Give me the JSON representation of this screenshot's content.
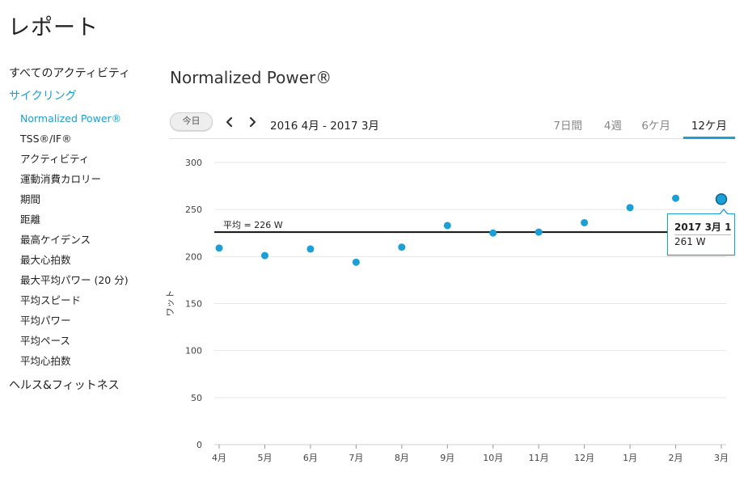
{
  "page_title": "レポート",
  "sidebar": {
    "top_items": [
      {
        "label": "すべてのアクティビティ",
        "active": false
      },
      {
        "label": "サイクリング",
        "active": true
      }
    ],
    "sub_items": [
      {
        "label": "Normalized Power®",
        "active": true
      },
      {
        "label": "TSS®/IF®",
        "active": false
      },
      {
        "label": "アクティビティ",
        "active": false
      },
      {
        "label": "運動消費カロリー",
        "active": false
      },
      {
        "label": "期間",
        "active": false
      },
      {
        "label": "距離",
        "active": false
      },
      {
        "label": "最高ケイデンス",
        "active": false
      },
      {
        "label": "最大心拍数",
        "active": false
      },
      {
        "label": "最大平均パワー (20 分)",
        "active": false
      },
      {
        "label": "平均スピード",
        "active": false
      },
      {
        "label": "平均パワー",
        "active": false
      },
      {
        "label": "平均ペース",
        "active": false
      },
      {
        "label": "平均心拍数",
        "active": false
      }
    ],
    "bottom_item": "ヘルス&フィットネス"
  },
  "section_title": "Normalized Power®",
  "toolbar": {
    "today_label": "今日",
    "range_label": "2016 4月 - 2017 3月",
    "tabs": [
      {
        "label": "7日間",
        "active": false
      },
      {
        "label": "4週",
        "active": false
      },
      {
        "label": "6ケ月",
        "active": false
      },
      {
        "label": "12ケ月",
        "active": true
      }
    ]
  },
  "colors": {
    "accent": "#1a9fd8",
    "point": "#1a9fd8",
    "avg_line": "#111111",
    "grid": "#e6e6e6"
  },
  "chart_data": {
    "type": "scatter",
    "categories": [
      "4月",
      "5月",
      "6月",
      "7月",
      "8月",
      "9月",
      "10月",
      "11月",
      "12月",
      "1月",
      "2月",
      "3月"
    ],
    "values": [
      209,
      201,
      208,
      194,
      210,
      233,
      225,
      226,
      236,
      252,
      262,
      261
    ],
    "ylabel": "ワット",
    "ylim": [
      0,
      300
    ],
    "yticks": [
      0,
      50,
      100,
      150,
      200,
      250,
      300
    ],
    "grid": true,
    "average": {
      "value": 226,
      "label": "平均 = 226 W"
    },
    "highlight_index": 11
  },
  "tooltip": {
    "date": "2017 3月 1",
    "value": "261 W"
  }
}
